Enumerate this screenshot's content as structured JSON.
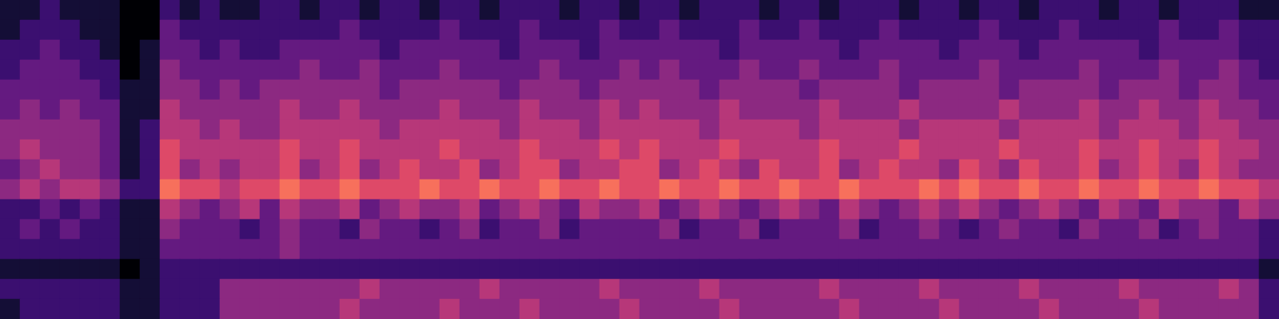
{
  "chart_data": {
    "type": "heatmap",
    "tick_labels": false,
    "zlim": [
      0,
      9
    ],
    "cells": [
      [
        1,
        1,
        2,
        1,
        1,
        1,
        0,
        0,
        2,
        1,
        2,
        1,
        1,
        2,
        2,
        1,
        2,
        2,
        1,
        2,
        2,
        1,
        2,
        2,
        1,
        2,
        2,
        2,
        1,
        2,
        2,
        1,
        2,
        2,
        1,
        2,
        2,
        2,
        1,
        2,
        2,
        1,
        2,
        2,
        2,
        1,
        2,
        2,
        1,
        2,
        2,
        1,
        2,
        2,
        2,
        1,
        2,
        2,
        1,
        2,
        2,
        2,
        1,
        1
      ],
      [
        1,
        2,
        2,
        2,
        1,
        1,
        0,
        0,
        3,
        2,
        2,
        2,
        2,
        2,
        2,
        2,
        2,
        3,
        2,
        2,
        2,
        2,
        3,
        2,
        2,
        2,
        3,
        2,
        2,
        2,
        3,
        2,
        2,
        3,
        2,
        2,
        2,
        3,
        2,
        2,
        3,
        2,
        2,
        2,
        3,
        2,
        2,
        2,
        2,
        3,
        2,
        2,
        2,
        3,
        2,
        2,
        2,
        2,
        3,
        2,
        2,
        3,
        2,
        2
      ],
      [
        2,
        2,
        3,
        2,
        2,
        1,
        0,
        1,
        3,
        3,
        2,
        3,
        2,
        2,
        3,
        3,
        3,
        3,
        3,
        2,
        3,
        3,
        3,
        3,
        3,
        2,
        3,
        3,
        3,
        2,
        3,
        3,
        3,
        3,
        3,
        3,
        2,
        3,
        3,
        3,
        3,
        3,
        2,
        3,
        3,
        3,
        3,
        2,
        3,
        3,
        3,
        2,
        3,
        3,
        3,
        3,
        3,
        2,
        3,
        3,
        3,
        3,
        2,
        2
      ],
      [
        2,
        3,
        3,
        3,
        2,
        2,
        0,
        1,
        4,
        3,
        3,
        3,
        3,
        3,
        3,
        4,
        3,
        3,
        4,
        3,
        3,
        3,
        4,
        3,
        3,
        3,
        3,
        4,
        3,
        3,
        3,
        4,
        3,
        4,
        3,
        3,
        3,
        4,
        3,
        3,
        4,
        3,
        3,
        3,
        4,
        3,
        3,
        3,
        3,
        4,
        3,
        3,
        3,
        3,
        4,
        3,
        3,
        3,
        4,
        3,
        3,
        4,
        3,
        2
      ],
      [
        3,
        3,
        3,
        3,
        3,
        2,
        1,
        1,
        4,
        4,
        3,
        4,
        3,
        4,
        4,
        4,
        4,
        4,
        4,
        3,
        4,
        4,
        4,
        4,
        4,
        3,
        4,
        4,
        4,
        3,
        4,
        4,
        4,
        4,
        4,
        3,
        4,
        4,
        4,
        4,
        3,
        4,
        4,
        4,
        4,
        3,
        4,
        4,
        4,
        4,
        3,
        4,
        4,
        4,
        4,
        3,
        4,
        4,
        4,
        3,
        4,
        4,
        3,
        3
      ],
      [
        3,
        4,
        3,
        4,
        3,
        3,
        1,
        1,
        5,
        4,
        4,
        4,
        4,
        4,
        5,
        4,
        4,
        5,
        4,
        4,
        4,
        4,
        5,
        4,
        4,
        4,
        5,
        4,
        4,
        4,
        5,
        4,
        5,
        4,
        4,
        4,
        5,
        4,
        4,
        4,
        4,
        5,
        4,
        4,
        4,
        5,
        4,
        4,
        4,
        4,
        5,
        4,
        4,
        4,
        5,
        4,
        4,
        5,
        4,
        4,
        5,
        4,
        4,
        3
      ],
      [
        4,
        4,
        4,
        4,
        4,
        3,
        1,
        2,
        5,
        5,
        4,
        5,
        4,
        4,
        5,
        5,
        5,
        5,
        5,
        4,
        5,
        5,
        5,
        5,
        5,
        4,
        5,
        5,
        5,
        4,
        5,
        5,
        5,
        5,
        5,
        4,
        5,
        5,
        5,
        5,
        4,
        5,
        5,
        5,
        5,
        4,
        5,
        5,
        5,
        5,
        4,
        5,
        5,
        5,
        5,
        4,
        5,
        5,
        5,
        4,
        5,
        5,
        4,
        4
      ],
      [
        4,
        5,
        4,
        4,
        4,
        3,
        1,
        2,
        6,
        5,
        5,
        5,
        5,
        5,
        6,
        5,
        5,
        6,
        5,
        5,
        5,
        5,
        6,
        5,
        5,
        5,
        6,
        5,
        5,
        5,
        6,
        5,
        6,
        5,
        5,
        5,
        6,
        5,
        5,
        5,
        5,
        6,
        5,
        5,
        5,
        6,
        5,
        5,
        5,
        5,
        6,
        5,
        5,
        5,
        6,
        5,
        5,
        6,
        5,
        5,
        6,
        5,
        5,
        4
      ],
      [
        3,
        4,
        5,
        4,
        4,
        3,
        1,
        2,
        6,
        4,
        5,
        4,
        5,
        5,
        6,
        4,
        5,
        6,
        4,
        5,
        6,
        5,
        5,
        6,
        4,
        5,
        6,
        6,
        4,
        5,
        5,
        6,
        6,
        4,
        5,
        6,
        5,
        4,
        6,
        5,
        5,
        6,
        4,
        5,
        6,
        5,
        5,
        4,
        6,
        5,
        4,
        6,
        5,
        5,
        6,
        4,
        5,
        6,
        5,
        4,
        6,
        5,
        4,
        4
      ],
      [
        4,
        5,
        4,
        5,
        5,
        4,
        2,
        2,
        7,
        6,
        6,
        5,
        6,
        6,
        7,
        6,
        6,
        7,
        6,
        6,
        6,
        7,
        6,
        6,
        7,
        6,
        6,
        7,
        6,
        6,
        7,
        6,
        6,
        7,
        6,
        6,
        7,
        6,
        6,
        7,
        6,
        6,
        7,
        6,
        6,
        6,
        7,
        6,
        7,
        6,
        6,
        7,
        6,
        6,
        7,
        6,
        6,
        7,
        6,
        6,
        7,
        6,
        6,
        5
      ],
      [
        2,
        2,
        3,
        2,
        3,
        2,
        1,
        1,
        5,
        4,
        3,
        4,
        5,
        3,
        5,
        4,
        4,
        5,
        3,
        4,
        5,
        4,
        4,
        5,
        3,
        4,
        5,
        4,
        3,
        5,
        4,
        4,
        5,
        3,
        4,
        5,
        4,
        3,
        4,
        5,
        4,
        3,
        5,
        4,
        3,
        4,
        5,
        4,
        5,
        4,
        3,
        4,
        5,
        4,
        3,
        5,
        4,
        3,
        5,
        4,
        4,
        3,
        5,
        4
      ],
      [
        2,
        3,
        2,
        3,
        2,
        2,
        1,
        1,
        4,
        3,
        3,
        3,
        2,
        3,
        4,
        3,
        3,
        2,
        4,
        3,
        3,
        2,
        3,
        4,
        2,
        3,
        3,
        4,
        2,
        3,
        3,
        3,
        3,
        4,
        2,
        3,
        3,
        4,
        2,
        3,
        3,
        3,
        4,
        2,
        3,
        3,
        4,
        3,
        2,
        3,
        4,
        3,
        3,
        2,
        4,
        3,
        3,
        4,
        2,
        3,
        4,
        3,
        3,
        2
      ],
      [
        2,
        2,
        2,
        2,
        2,
        2,
        1,
        1,
        3,
        3,
        3,
        3,
        3,
        3,
        4,
        3,
        3,
        3,
        3,
        3,
        3,
        3,
        3,
        3,
        3,
        3,
        3,
        3,
        3,
        3,
        3,
        3,
        3,
        3,
        3,
        3,
        3,
        3,
        3,
        3,
        3,
        3,
        3,
        3,
        3,
        3,
        3,
        3,
        3,
        3,
        3,
        3,
        3,
        3,
        3,
        3,
        3,
        3,
        3,
        3,
        3,
        3,
        3,
        2
      ],
      [
        1,
        1,
        1,
        1,
        1,
        1,
        0,
        1,
        2,
        2,
        2,
        2,
        2,
        2,
        2,
        2,
        2,
        2,
        2,
        2,
        2,
        2,
        2,
        2,
        2,
        2,
        2,
        2,
        2,
        2,
        2,
        2,
        2,
        2,
        2,
        2,
        2,
        2,
        2,
        2,
        2,
        2,
        2,
        2,
        2,
        2,
        2,
        2,
        2,
        2,
        2,
        2,
        2,
        2,
        2,
        2,
        2,
        2,
        2,
        2,
        2,
        2,
        2,
        1
      ],
      [
        2,
        2,
        2,
        2,
        2,
        2,
        1,
        1,
        2,
        2,
        2,
        4,
        4,
        4,
        4,
        4,
        4,
        4,
        5,
        4,
        4,
        4,
        4,
        4,
        5,
        4,
        4,
        4,
        4,
        4,
        5,
        4,
        4,
        4,
        4,
        5,
        4,
        4,
        4,
        4,
        4,
        5,
        4,
        4,
        4,
        4,
        5,
        4,
        4,
        4,
        4,
        5,
        4,
        4,
        4,
        4,
        5,
        4,
        4,
        4,
        4,
        5,
        4,
        2
      ],
      [
        1,
        2,
        2,
        2,
        2,
        2,
        1,
        1,
        2,
        2,
        2,
        4,
        4,
        4,
        4,
        4,
        4,
        5,
        4,
        4,
        4,
        4,
        5,
        4,
        4,
        4,
        5,
        4,
        4,
        4,
        4,
        5,
        4,
        4,
        4,
        4,
        5,
        4,
        4,
        4,
        4,
        4,
        5,
        4,
        4,
        4,
        4,
        5,
        4,
        4,
        4,
        4,
        5,
        4,
        4,
        4,
        4,
        5,
        4,
        4,
        4,
        4,
        4,
        2
      ]
    ]
  }
}
